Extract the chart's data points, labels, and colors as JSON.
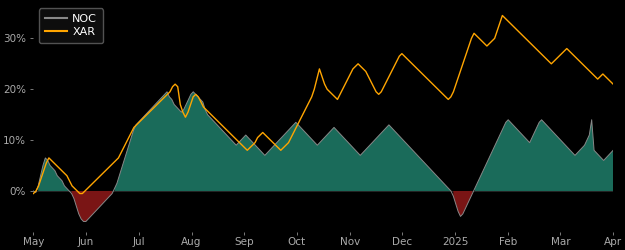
{
  "background_color": "#000000",
  "plot_bg_color": "#000000",
  "noc_color": "#888888",
  "xar_color": "#FFA500",
  "fill_positive_color": "#1a6b5a",
  "fill_negative_color": "#7a1515",
  "legend_bg_color": "#111111",
  "legend_edge_color": "#666666",
  "tick_label_color": "#aaaaaa",
  "ylim": [
    -8,
    37
  ],
  "yticks": [
    0,
    10,
    20,
    30
  ],
  "ytick_labels": [
    "0%",
    "10%",
    "20%",
    "30%"
  ],
  "x_labels": [
    "May",
    "Jun",
    "Jul",
    "Aug",
    "Sep",
    "Oct",
    "Nov",
    "Dec",
    "2025",
    "Feb",
    "Mar",
    "Apr"
  ],
  "noc_data": [
    0.0,
    -0.3,
    1.0,
    3.0,
    5.0,
    6.5,
    6.0,
    5.0,
    4.5,
    4.0,
    3.0,
    2.5,
    2.0,
    1.0,
    0.5,
    0.0,
    -0.5,
    -1.5,
    -3.0,
    -4.5,
    -5.5,
    -6.0,
    -6.0,
    -5.5,
    -5.0,
    -4.5,
    -4.0,
    -3.5,
    -3.0,
    -2.5,
    -2.0,
    -1.5,
    -1.0,
    -0.5,
    0.5,
    1.5,
    3.0,
    4.5,
    6.0,
    7.5,
    9.0,
    10.5,
    12.0,
    13.0,
    13.5,
    14.0,
    14.5,
    15.0,
    15.5,
    16.0,
    16.5,
    17.0,
    17.5,
    18.0,
    18.5,
    19.0,
    19.5,
    18.5,
    18.0,
    17.0,
    16.5,
    16.0,
    15.5,
    16.0,
    17.0,
    18.0,
    19.0,
    19.5,
    19.0,
    18.5,
    18.0,
    17.5,
    16.0,
    15.0,
    14.5,
    14.0,
    13.5,
    13.0,
    12.5,
    12.0,
    11.5,
    11.0,
    10.5,
    10.0,
    9.5,
    9.0,
    9.5,
    10.0,
    10.5,
    11.0,
    10.5,
    10.0,
    9.5,
    9.0,
    8.5,
    8.0,
    7.5,
    7.0,
    7.5,
    8.0,
    8.5,
    9.0,
    9.5,
    10.0,
    10.5,
    11.0,
    11.5,
    12.0,
    12.5,
    13.0,
    13.5,
    13.0,
    12.5,
    12.0,
    11.5,
    11.0,
    10.5,
    10.0,
    9.5,
    9.0,
    9.5,
    10.0,
    10.5,
    11.0,
    11.5,
    12.0,
    12.5,
    12.0,
    11.5,
    11.0,
    10.5,
    10.0,
    9.5,
    9.0,
    8.5,
    8.0,
    7.5,
    7.0,
    7.5,
    8.0,
    8.5,
    9.0,
    9.5,
    10.0,
    10.5,
    11.0,
    11.5,
    12.0,
    12.5,
    13.0,
    12.5,
    12.0,
    11.5,
    11.0,
    10.5,
    10.0,
    9.5,
    9.0,
    8.5,
    8.0,
    7.5,
    7.0,
    6.5,
    6.0,
    5.5,
    5.0,
    4.5,
    4.0,
    3.5,
    3.0,
    2.5,
    2.0,
    1.5,
    1.0,
    0.5,
    0.0,
    -1.0,
    -2.5,
    -4.0,
    -5.0,
    -4.5,
    -3.5,
    -2.5,
    -1.5,
    -0.5,
    0.5,
    1.5,
    2.5,
    3.5,
    4.5,
    5.5,
    6.5,
    7.5,
    8.5,
    9.5,
    10.5,
    11.5,
    12.5,
    13.5,
    14.0,
    13.5,
    13.0,
    12.5,
    12.0,
    11.5,
    11.0,
    10.5,
    10.0,
    9.5,
    10.5,
    11.5,
    12.5,
    13.5,
    14.0,
    13.5,
    13.0,
    12.5,
    12.0,
    11.5,
    11.0,
    10.5,
    10.0,
    9.5,
    9.0,
    8.5,
    8.0,
    7.5,
    7.0,
    7.5,
    8.0,
    8.5,
    9.0,
    10.0,
    11.0,
    14.0,
    8.0,
    7.5,
    7.0,
    6.5,
    6.0,
    6.5,
    7.0,
    7.5,
    8.0
  ],
  "xar_data": [
    -0.5,
    0.0,
    1.0,
    2.5,
    4.0,
    5.5,
    6.5,
    6.0,
    5.5,
    5.0,
    4.5,
    4.0,
    3.5,
    3.0,
    2.0,
    1.0,
    0.5,
    0.0,
    -0.5,
    -0.5,
    0.0,
    0.5,
    1.0,
    1.5,
    2.0,
    2.5,
    3.0,
    3.5,
    4.0,
    4.5,
    5.0,
    5.5,
    6.0,
    6.5,
    7.5,
    8.5,
    9.5,
    10.5,
    11.5,
    12.5,
    13.0,
    13.5,
    14.0,
    14.5,
    15.0,
    15.5,
    16.0,
    16.5,
    17.0,
    17.5,
    18.0,
    18.5,
    19.0,
    19.5,
    20.5,
    21.0,
    20.5,
    17.0,
    15.5,
    14.5,
    15.5,
    17.0,
    18.5,
    19.0,
    18.5,
    17.5,
    16.5,
    16.0,
    15.5,
    15.0,
    14.5,
    14.0,
    13.5,
    13.0,
    12.5,
    12.0,
    11.5,
    11.0,
    10.5,
    10.0,
    9.5,
    9.0,
    8.5,
    8.0,
    8.5,
    9.0,
    9.5,
    10.5,
    11.0,
    11.5,
    11.0,
    10.5,
    10.0,
    9.5,
    9.0,
    8.5,
    8.0,
    8.5,
    9.0,
    9.5,
    10.5,
    11.5,
    12.5,
    13.5,
    14.5,
    15.5,
    16.5,
    17.5,
    18.5,
    20.0,
    22.0,
    24.0,
    22.5,
    21.0,
    20.0,
    19.5,
    19.0,
    18.5,
    18.0,
    19.0,
    20.0,
    21.0,
    22.0,
    23.0,
    24.0,
    24.5,
    25.0,
    24.5,
    24.0,
    23.5,
    22.5,
    21.5,
    20.5,
    19.5,
    19.0,
    19.5,
    20.5,
    21.5,
    22.5,
    23.5,
    24.5,
    25.5,
    26.5,
    27.0,
    26.5,
    26.0,
    25.5,
    25.0,
    24.5,
    24.0,
    23.5,
    23.0,
    22.5,
    22.0,
    21.5,
    21.0,
    20.5,
    20.0,
    19.5,
    19.0,
    18.5,
    18.0,
    18.5,
    19.5,
    21.0,
    22.5,
    24.0,
    25.5,
    27.0,
    28.5,
    30.0,
    31.0,
    30.5,
    30.0,
    29.5,
    29.0,
    28.5,
    29.0,
    29.5,
    30.0,
    31.5,
    33.0,
    34.5,
    34.0,
    33.5,
    33.0,
    32.5,
    32.0,
    31.5,
    31.0,
    30.5,
    30.0,
    29.5,
    29.0,
    28.5,
    28.0,
    27.5,
    27.0,
    26.5,
    26.0,
    25.5,
    25.0,
    25.5,
    26.0,
    26.5,
    27.0,
    27.5,
    28.0,
    27.5,
    27.0,
    26.5,
    26.0,
    25.5,
    25.0,
    24.5,
    24.0,
    23.5,
    23.0,
    22.5,
    22.0,
    22.5,
    23.0,
    22.5,
    22.0,
    21.5,
    21.0
  ]
}
